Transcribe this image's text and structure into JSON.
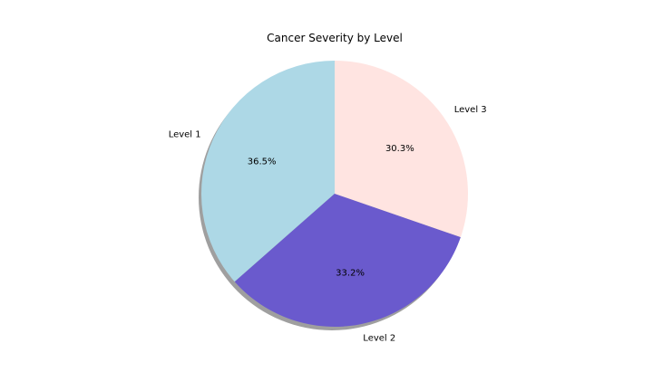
{
  "chart_data": {
    "type": "pie",
    "title": "Cancer Severity by Level",
    "labels": [
      "Level 1",
      "Level 2",
      "Level 3"
    ],
    "values": [
      36.5,
      33.2,
      30.3
    ],
    "percent_labels": [
      "36.5%",
      "33.2%",
      "30.3%"
    ],
    "colors": [
      "#add8e6",
      "#6a5acd",
      "#ffe4e1"
    ],
    "start_angle_deg": 90,
    "direction": "counterclockwise",
    "shadow": true,
    "legend": "none"
  }
}
